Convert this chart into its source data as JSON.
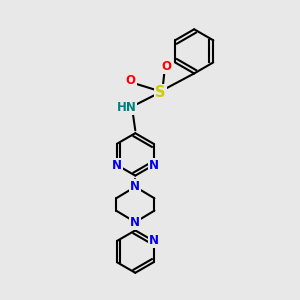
{
  "bg_color": "#e8e8e8",
  "bond_color": "#000000",
  "bond_width": 1.5,
  "atom_colors": {
    "N": "#0000ee",
    "O": "#ff0000",
    "S": "#cccc00",
    "H": "#008080",
    "C": "#000000"
  },
  "font_size_atoms": 8.5
}
